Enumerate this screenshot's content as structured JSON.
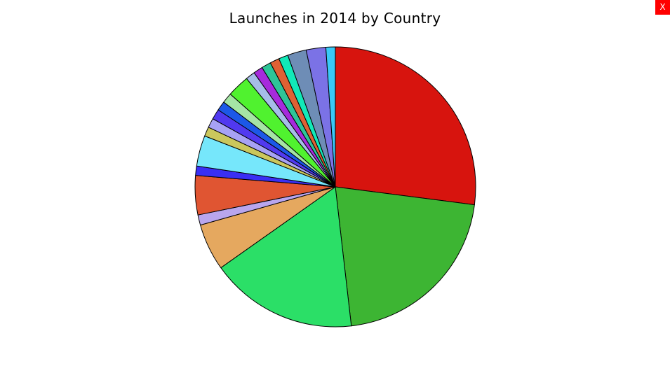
{
  "close_button": {
    "label": "X",
    "color": "#ff0000"
  },
  "chart_data": {
    "type": "pie",
    "title": "Launches in 2014 by Country",
    "legend": "none",
    "slices": [
      {
        "value": 27.5,
        "color": "#d7140e"
      },
      {
        "value": 21.5,
        "color": "#3db533"
      },
      {
        "value": 17.3,
        "color": "#2bdf67"
      },
      {
        "value": 5.5,
        "color": "#e5a85f"
      },
      {
        "value": 1.2,
        "color": "#b9a6ee"
      },
      {
        "value": 4.6,
        "color": "#e05532"
      },
      {
        "value": 1.1,
        "color": "#3a2ff4"
      },
      {
        "value": 3.6,
        "color": "#76e7fb"
      },
      {
        "value": 1.1,
        "color": "#cbc75c"
      },
      {
        "value": 1.1,
        "color": "#a7a2f4"
      },
      {
        "value": 1.2,
        "color": "#5139f0"
      },
      {
        "value": 1.1,
        "color": "#1c58e7"
      },
      {
        "value": 1.2,
        "color": "#a5e5a5"
      },
      {
        "value": 2.6,
        "color": "#50f22f"
      },
      {
        "value": 1.1,
        "color": "#a6bde8"
      },
      {
        "value": 1.1,
        "color": "#a62bdc"
      },
      {
        "value": 1.1,
        "color": "#2ec498"
      },
      {
        "value": 1.1,
        "color": "#df6134"
      },
      {
        "value": 1.1,
        "color": "#12e9b8"
      },
      {
        "value": 2.2,
        "color": "#6e8db6"
      },
      {
        "value": 2.3,
        "color": "#7b72e6"
      },
      {
        "value": 1.1,
        "color": "#39c9f7"
      }
    ]
  }
}
